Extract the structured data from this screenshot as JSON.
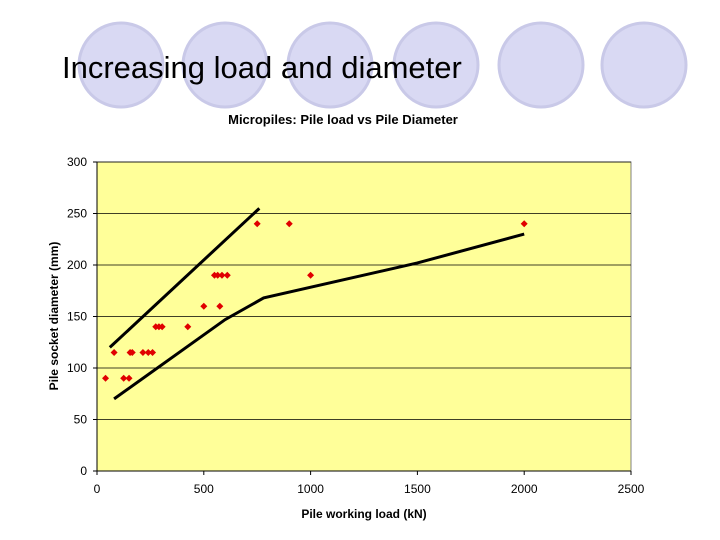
{
  "slide": {
    "title": "Increasing load and diameter",
    "decoration_colors": {
      "circle_fill": "#d9d9f3",
      "circle_stroke": "#c9c9e8"
    }
  },
  "chart_data": {
    "type": "scatter",
    "title": "Micropiles: Pile load vs Pile Diameter",
    "xlabel": "Pile working load (kN)",
    "ylabel": "Pile socket diameter (mm)",
    "xlim": [
      0,
      2500
    ],
    "ylim": [
      0,
      300
    ],
    "xticks": [
      0,
      500,
      1000,
      1500,
      2000,
      2500
    ],
    "yticks": [
      0,
      50,
      100,
      150,
      200,
      250,
      300
    ],
    "grid": true,
    "legend": "none",
    "colors": {
      "plot_background": "#ffff99",
      "marker": "#e00000",
      "line": "#000000",
      "grid": "#000000"
    },
    "points": [
      {
        "x": 40,
        "y": 90
      },
      {
        "x": 80,
        "y": 115
      },
      {
        "x": 125,
        "y": 90
      },
      {
        "x": 150,
        "y": 90
      },
      {
        "x": 155,
        "y": 115
      },
      {
        "x": 165,
        "y": 115
      },
      {
        "x": 215,
        "y": 115
      },
      {
        "x": 240,
        "y": 115
      },
      {
        "x": 260,
        "y": 115
      },
      {
        "x": 275,
        "y": 140
      },
      {
        "x": 290,
        "y": 140
      },
      {
        "x": 305,
        "y": 140
      },
      {
        "x": 425,
        "y": 140
      },
      {
        "x": 500,
        "y": 160
      },
      {
        "x": 550,
        "y": 190
      },
      {
        "x": 565,
        "y": 190
      },
      {
        "x": 575,
        "y": 160
      },
      {
        "x": 585,
        "y": 190
      },
      {
        "x": 610,
        "y": 190
      },
      {
        "x": 750,
        "y": 240
      },
      {
        "x": 900,
        "y": 240
      },
      {
        "x": 1000,
        "y": 190
      },
      {
        "x": 2000,
        "y": 240
      }
    ],
    "lines": [
      {
        "points": [
          [
            60,
            120
          ],
          [
            760,
            255
          ]
        ]
      },
      {
        "points": [
          [
            80,
            70
          ],
          [
            600,
            147
          ],
          [
            780,
            168
          ],
          [
            1500,
            202
          ],
          [
            2000,
            230
          ]
        ]
      }
    ]
  }
}
